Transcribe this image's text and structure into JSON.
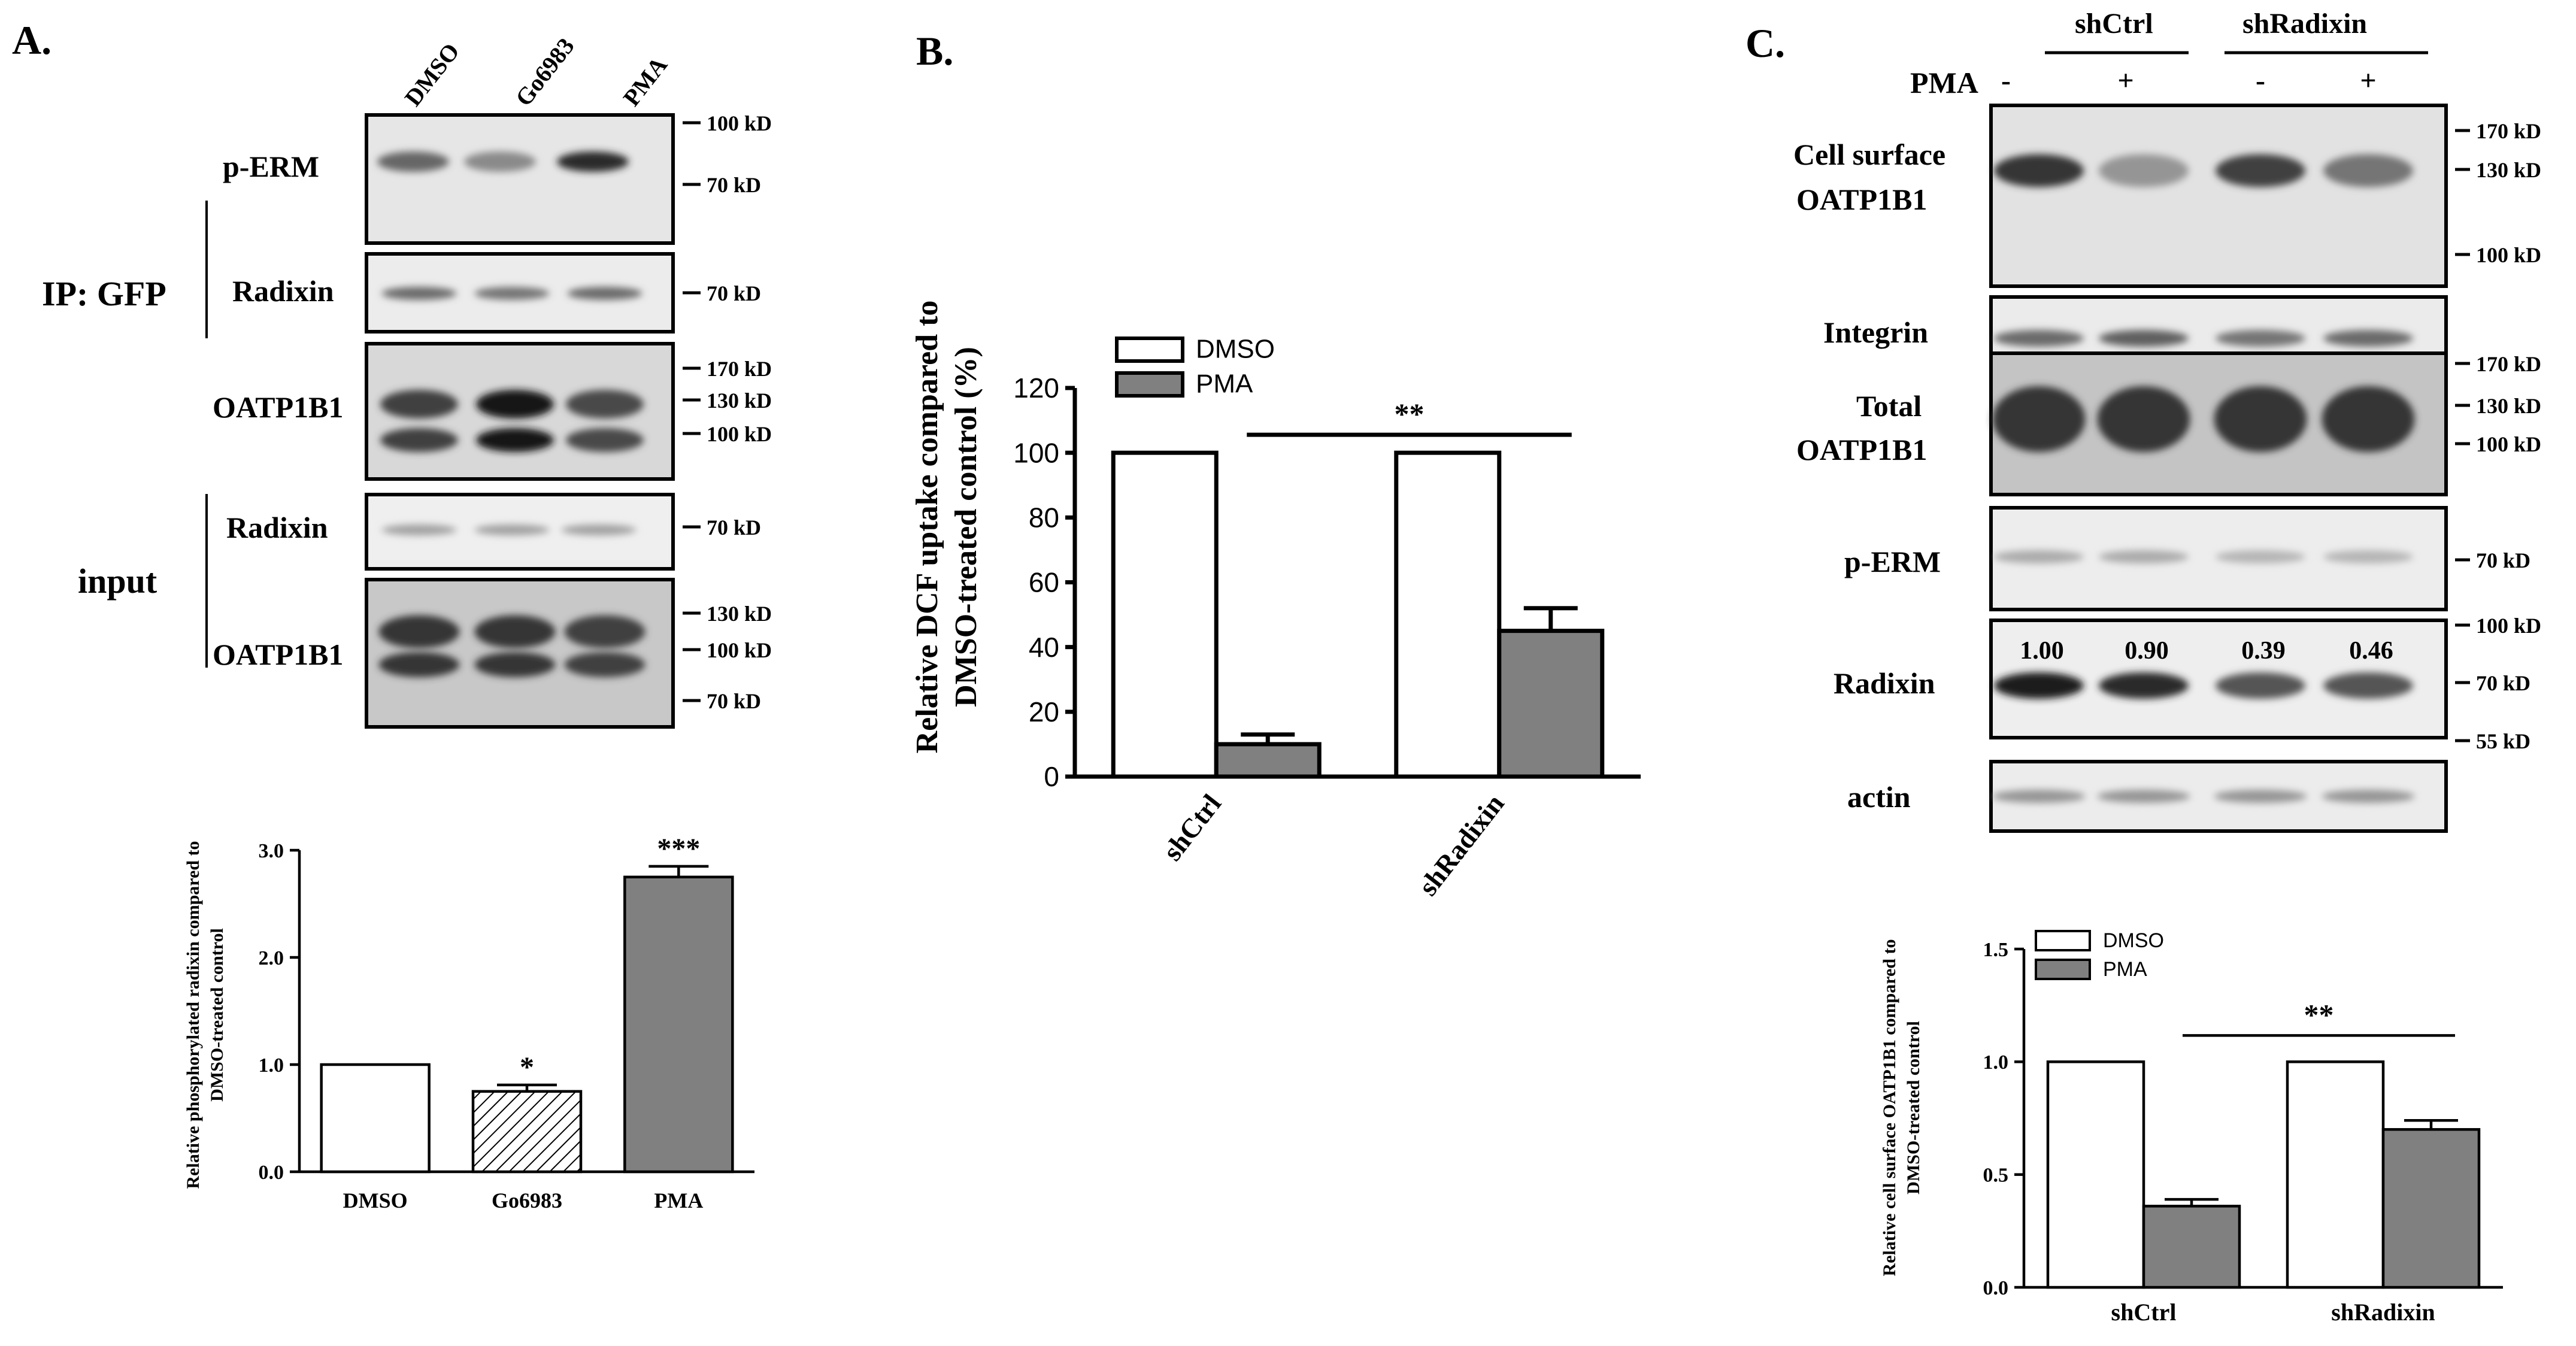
{
  "panels": {
    "A": {
      "letter": "A.",
      "lanes": [
        "DMSO",
        "Go6983",
        "PMA"
      ],
      "side_labels": {
        "ip": "IP: GFP",
        "input": "input"
      },
      "blots": [
        {
          "label": "p-ERM",
          "markers": [
            "100 kD",
            "70 kD"
          ],
          "intensity": [
            0.62,
            0.45,
            0.9
          ]
        },
        {
          "label": "Radixin",
          "markers": [
            "70 kD"
          ],
          "intensity": [
            0.6,
            0.55,
            0.6
          ]
        },
        {
          "label": "OATP1B1",
          "markers": [
            "170 kD",
            "130 kD",
            "100 kD"
          ],
          "intensity": [
            0.8,
            1.0,
            0.75
          ]
        },
        {
          "label": "Radixin",
          "markers": [
            "70 kD"
          ],
          "intensity": [
            0.35,
            0.35,
            0.35
          ]
        },
        {
          "label": "OATP1B1",
          "markers": [
            "130 kD",
            "100 kD",
            "70 kD"
          ],
          "intensity": [
            0.85,
            0.85,
            0.8
          ]
        }
      ]
    },
    "B": {
      "letter": "B."
    },
    "C": {
      "letter": "C.",
      "groups": [
        "shCtrl",
        "shRadixin"
      ],
      "pma_label": "PMA",
      "pma_signs": [
        "-",
        "+",
        "-",
        "+"
      ],
      "radixin_quant": [
        "1.00",
        "0.90",
        "0.39",
        "0.46"
      ],
      "blots": [
        {
          "label_lines": [
            "Cell surface",
            "OATP1B1"
          ],
          "markers": [
            "170 kD",
            "130 kD",
            "100 kD"
          ],
          "intensity": [
            0.85,
            0.4,
            0.8,
            0.55
          ]
        },
        {
          "label_lines": [
            "Integrin"
          ],
          "markers": [],
          "intensity": [
            0.6,
            0.65,
            0.55,
            0.6
          ]
        },
        {
          "label_lines": [
            "Total",
            "OATP1B1"
          ],
          "markers": [
            "170 kD",
            "130 kD",
            "100 kD"
          ],
          "intensity": [
            0.85,
            0.85,
            0.85,
            0.85
          ]
        },
        {
          "label_lines": [
            "p-ERM"
          ],
          "markers": [
            "70 kD"
          ],
          "intensity": [
            0.3,
            0.3,
            0.25,
            0.25
          ]
        },
        {
          "label_lines": [
            "Radixin"
          ],
          "markers": [
            "100 kD",
            "70 kD",
            "55 kD"
          ],
          "intensity": [
            0.95,
            0.9,
            0.7,
            0.7
          ]
        },
        {
          "label_lines": [
            "actin"
          ],
          "markers": [],
          "intensity": [
            0.4,
            0.4,
            0.4,
            0.4
          ]
        }
      ]
    }
  },
  "chart_data": [
    {
      "panel": "A",
      "type": "bar",
      "categories": [
        "DMSO",
        "Go6983",
        "PMA"
      ],
      "values": [
        1.0,
        0.75,
        2.75
      ],
      "errors": [
        0,
        0.06,
        0.1
      ],
      "fills": [
        "white",
        "hatched",
        "#808080"
      ],
      "significance": [
        "",
        "*",
        "***"
      ],
      "ylabel_lines": [
        "Relative phosphorylated radixin compared to",
        "DMSO-treated control"
      ],
      "ylim": [
        0,
        3.0
      ],
      "yticks": [
        "0.0",
        "1.0",
        "2.0",
        "3.0"
      ],
      "ytick_values": [
        0,
        1,
        2,
        3
      ]
    },
    {
      "panel": "B",
      "type": "bar",
      "categories": [
        "shCtrl",
        "shRadixin"
      ],
      "series": [
        {
          "name": "DMSO",
          "values": [
            100,
            100
          ],
          "errors": [
            0,
            0
          ],
          "color": "#ffffff"
        },
        {
          "name": "PMA",
          "values": [
            10,
            45
          ],
          "errors": [
            3,
            7
          ],
          "color": "#808080"
        }
      ],
      "bracket_label": "**",
      "ylabel_lines": [
        "Relative DCF uptake compared to",
        "DMSO-treated control (%)"
      ],
      "ylim": [
        0,
        120
      ],
      "yticks": [
        "0",
        "20",
        "40",
        "60",
        "80",
        "100",
        "120"
      ],
      "ytick_values": [
        0,
        20,
        40,
        60,
        80,
        100,
        120
      ]
    },
    {
      "panel": "C",
      "type": "bar",
      "categories": [
        "shCtrl",
        "shRadixin"
      ],
      "series": [
        {
          "name": "DMSO",
          "values": [
            1.0,
            1.0
          ],
          "errors": [
            0,
            0
          ],
          "color": "#ffffff"
        },
        {
          "name": "PMA",
          "values": [
            0.36,
            0.7
          ],
          "errors": [
            0.03,
            0.04
          ],
          "color": "#808080"
        }
      ],
      "bracket_label": "**",
      "ylabel_lines": [
        "Relative cell surface OATP1B1 compared to",
        "DMSO-treated control"
      ],
      "ylim": [
        0,
        1.5
      ],
      "yticks": [
        "0.0",
        "0.5",
        "1.0",
        "1.5"
      ],
      "ytick_values": [
        0,
        0.5,
        1.0,
        1.5
      ]
    }
  ]
}
